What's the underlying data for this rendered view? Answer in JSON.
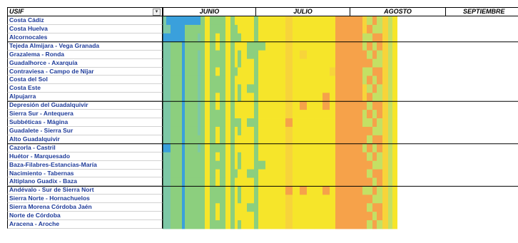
{
  "header": {
    "usif_label": "USIF",
    "filter_glyph": "▾",
    "months": [
      "JUNIO",
      "JULIO",
      "AGOSTO",
      "SEPTIEMBRE"
    ]
  },
  "rows": [
    "Costa Cádiz",
    "Costa Huelva",
    "Alcornocales",
    "Tejeda Almijara - Vega Granada",
    "Grazalema - Ronda",
    "Guadalhorce - Axarquía",
    "Contraviesa - Campo de Níjar",
    "Costa del Sol",
    "Costa Este",
    "Alpujarra",
    "Depresión del Guadalquivir",
    "Sierra Sur - Antequera",
    "Subbéticas - Mágina",
    "Guadalete - Sierra Sur",
    "Alto Guadalquivir",
    "Cazorla - Castril",
    "Huétor - Marquesado",
    "Baza-Filabres-Estancias-María",
    "Nacimiento - Tabernas",
    "Altiplano Guadix - Baza",
    "Andévalo - Sur de Sierra Nort",
    "Sierra Norte - Hornachuelos",
    "Sierra Morena Córdoba Jaén",
    "Norte de Córdoba",
    "Aracena - Aroche"
  ],
  "chart_data": {
    "type": "heatmap",
    "group_separators_after_row": [
      2,
      9,
      14,
      19
    ],
    "palette": {
      "0": "#3aa0dc",
      "1": "#7dc8a6",
      "2": "#8ccf7e",
      "3": "#c4e064",
      "4": "#f6e52a",
      "5": "#f7d43a",
      "6": "#f6a24a",
      "7": "#ffffff"
    },
    "columns": [
      {
        "w": 5,
        "cells": [
          "1",
          "1",
          "0",
          "1",
          "1",
          "1",
          "1",
          "1",
          "1",
          "1",
          "1",
          "1",
          "1",
          "1",
          "1",
          "0",
          "1",
          "1",
          "1",
          "1",
          "1",
          "1",
          "1",
          "1",
          "1"
        ]
      },
      {
        "w": 6,
        "cells": [
          "0",
          "1",
          "0",
          "1",
          "1",
          "1",
          "1",
          "1",
          "1",
          "1",
          "1",
          "1",
          "1",
          "1",
          "1",
          "0",
          "1",
          "1",
          "1",
          "1",
          "1",
          "1",
          "1",
          "1",
          "1"
        ]
      },
      {
        "w": 10,
        "cells": [
          "0",
          "0",
          "0",
          "2",
          "2",
          "2",
          "2",
          "2",
          "2",
          "2",
          "2",
          "2",
          "2",
          "2",
          "2",
          "2",
          "2",
          "2",
          "2",
          "2",
          "2",
          "2",
          "2",
          "2",
          "2"
        ]
      },
      {
        "w": 6,
        "cells": [
          "0",
          "0",
          "0",
          "2",
          "2",
          "2",
          "2",
          "2",
          "2",
          "2",
          "2",
          "2",
          "2",
          "2",
          "2",
          "2",
          "2",
          "2",
          "2",
          "2",
          "2",
          "2",
          "2",
          "2",
          "2"
        ]
      },
      {
        "w": 4,
        "cells": [
          "0",
          "0",
          "0",
          "0",
          "0",
          "0",
          "0",
          "0",
          "0",
          "0",
          "0",
          "0",
          "0",
          "0",
          "0",
          "0",
          "0",
          "0",
          "0",
          "0",
          "0",
          "0",
          "0",
          "0",
          "0"
        ]
      },
      {
        "w": 18,
        "cells": [
          "0",
          "2",
          "2",
          "2",
          "2",
          "2",
          "2",
          "2",
          "2",
          "2",
          "2",
          "2",
          "2",
          "2",
          "2",
          "2",
          "2",
          "2",
          "2",
          "2",
          "2",
          "2",
          "2",
          "2",
          "2"
        ]
      },
      {
        "w": 4,
        "cells": [
          "0",
          "2",
          "1",
          "2",
          "1",
          "1",
          "1",
          "1",
          "1",
          "1",
          "1",
          "1",
          "1",
          "1",
          "2",
          "1",
          "2",
          "2",
          "2",
          "2",
          "2",
          "2",
          "2",
          "2",
          "2"
        ]
      },
      {
        "w": 6,
        "cells": [
          "2",
          "2",
          "2",
          "2",
          "2",
          "2",
          "2",
          "2",
          "2",
          "2",
          "2",
          "2",
          "2",
          "2",
          "2",
          "2",
          "2",
          "2",
          "2",
          "2",
          "2",
          "2",
          "2",
          "2",
          "2"
        ]
      },
      {
        "w": 7,
        "cells": [
          "4",
          "4",
          "4",
          "4",
          "4",
          "4",
          "4",
          "4",
          "4",
          "4",
          "4",
          "4",
          "4",
          "4",
          "4",
          "4",
          "4",
          "4",
          "4",
          "4",
          "4",
          "4",
          "4",
          "4",
          "4"
        ]
      },
      {
        "w": 8,
        "cells": [
          "2",
          "2",
          "2",
          "2",
          "2",
          "2",
          "2",
          "2",
          "2",
          "2",
          "2",
          "2",
          "2",
          "2",
          "2",
          "2",
          "2",
          "2",
          "2",
          "2",
          "2",
          "2",
          "2",
          "2",
          "2"
        ]
      },
      {
        "w": 6,
        "cells": [
          "2",
          "2",
          "4",
          "4",
          "2",
          "2",
          "4",
          "2",
          "2",
          "4",
          "4",
          "2",
          "2",
          "4",
          "4",
          "2",
          "4",
          "2",
          "4",
          "4",
          "2",
          "2",
          "4",
          "4",
          "2"
        ]
      },
      {
        "w": 8,
        "cells": [
          "2",
          "2",
          "2",
          "2",
          "2",
          "2",
          "2",
          "2",
          "2",
          "2",
          "2",
          "2",
          "2",
          "2",
          "2",
          "2",
          "2",
          "2",
          "2",
          "2",
          "2",
          "2",
          "2",
          "2",
          "2"
        ]
      },
      {
        "w": 7,
        "cells": [
          "4",
          "4",
          "4",
          "4",
          "4",
          "4",
          "4",
          "4",
          "4",
          "4",
          "4",
          "4",
          "4",
          "4",
          "4",
          "4",
          "4",
          "4",
          "4",
          "4",
          "4",
          "4",
          "4",
          "4",
          "4"
        ]
      },
      {
        "w": 6,
        "cells": [
          "2",
          "2",
          "2",
          "2",
          "2",
          "2",
          "2",
          "2",
          "2",
          "2",
          "2",
          "2",
          "2",
          "2",
          "2",
          "2",
          "2",
          "2",
          "2",
          "2",
          "2",
          "2",
          "2",
          "2",
          "2"
        ]
      },
      {
        "w": 4,
        "cells": [
          "4",
          "2",
          "2",
          "4",
          "4",
          "4",
          "2",
          "4",
          "4",
          "4",
          "4",
          "4",
          "2",
          "4",
          "4",
          "4",
          "4",
          "4",
          "2",
          "4",
          "4",
          "4",
          "4",
          "4",
          "4"
        ]
      },
      {
        "w": 5,
        "cells": [
          "4",
          "4",
          "2",
          "4",
          "2",
          "2",
          "4",
          "4",
          "2",
          "2",
          "4",
          "4",
          "2",
          "2",
          "4",
          "4",
          "2",
          "2",
          "4",
          "4",
          "2",
          "2",
          "4",
          "4",
          "2"
        ]
      },
      {
        "w": 8,
        "cells": [
          "4",
          "4",
          "4",
          "4",
          "4",
          "4",
          "4",
          "4",
          "4",
          "4",
          "4",
          "4",
          "4",
          "4",
          "4",
          "4",
          "4",
          "4",
          "4",
          "4",
          "4",
          "4",
          "4",
          "4",
          "4"
        ]
      },
      {
        "w": 10,
        "cells": [
          "4",
          "4",
          "4",
          "2",
          "2",
          "4",
          "4",
          "4",
          "2",
          "4",
          "4",
          "4",
          "2",
          "4",
          "4",
          "4",
          "4",
          "4",
          "2",
          "4",
          "4",
          "4",
          "2",
          "4",
          "4"
        ]
      },
      {
        "w": 6,
        "cells": [
          "2",
          "2",
          "2",
          "2",
          "2",
          "2",
          "2",
          "2",
          "2",
          "2",
          "2",
          "2",
          "2",
          "2",
          "2",
          "2",
          "2",
          "2",
          "2",
          "2",
          "2",
          "2",
          "2",
          "2",
          "2"
        ]
      },
      {
        "w": 10,
        "cells": [
          "4",
          "4",
          "4",
          "2",
          "4",
          "4",
          "4",
          "4",
          "4",
          "4",
          "4",
          "4",
          "4",
          "4",
          "4",
          "4",
          "4",
          "2",
          "4",
          "4",
          "4",
          "4",
          "4",
          "4",
          "4"
        ]
      },
      {
        "w": 8,
        "cells": [
          "4",
          "4",
          "4",
          "4",
          "4",
          "4",
          "4",
          "4",
          "4",
          "4",
          "4",
          "4",
          "4",
          "4",
          "4",
          "4",
          "4",
          "4",
          "4",
          "4",
          "4",
          "4",
          "4",
          "4",
          "4"
        ]
      },
      {
        "w": 12,
        "cells": [
          "4",
          "4",
          "4",
          "4",
          "4",
          "4",
          "4",
          "4",
          "4",
          "4",
          "4",
          "4",
          "4",
          "4",
          "4",
          "4",
          "4",
          "4",
          "4",
          "4",
          "4",
          "4",
          "4",
          "4",
          "4"
        ]
      },
      {
        "w": 8,
        "cells": [
          "4",
          "4",
          "4",
          "4",
          "4",
          "4",
          "4",
          "4",
          "4",
          "4",
          "4",
          "4",
          "4",
          "4",
          "4",
          "4",
          "4",
          "4",
          "4",
          "4",
          "4",
          "4",
          "4",
          "4",
          "4"
        ]
      },
      {
        "w": 10,
        "cells": [
          "5",
          "5",
          "5",
          "5",
          "5",
          "5",
          "5",
          "5",
          "5",
          "5",
          "5",
          "5",
          "6",
          "5",
          "5",
          "5",
          "5",
          "5",
          "5",
          "5",
          "6",
          "5",
          "5",
          "5",
          "5"
        ]
      },
      {
        "w": 10,
        "cells": [
          "4",
          "4",
          "4",
          "4",
          "4",
          "4",
          "4",
          "4",
          "4",
          "4",
          "4",
          "4",
          "4",
          "4",
          "4",
          "4",
          "4",
          "4",
          "4",
          "4",
          "4",
          "4",
          "4",
          "4",
          "4"
        ]
      },
      {
        "w": 10,
        "cells": [
          "4",
          "4",
          "4",
          "4",
          "5",
          "4",
          "4",
          "4",
          "4",
          "4",
          "6",
          "4",
          "4",
          "4",
          "4",
          "4",
          "4",
          "4",
          "4",
          "4",
          "6",
          "4",
          "4",
          "4",
          "4"
        ]
      },
      {
        "w": 10,
        "cells": [
          "4",
          "4",
          "4",
          "4",
          "4",
          "4",
          "4",
          "4",
          "4",
          "4",
          "4",
          "4",
          "4",
          "4",
          "4",
          "4",
          "4",
          "4",
          "4",
          "4",
          "4",
          "4",
          "4",
          "4",
          "4"
        ]
      },
      {
        "w": 12,
        "cells": [
          "4",
          "4",
          "4",
          "4",
          "4",
          "4",
          "4",
          "4",
          "4",
          "4",
          "4",
          "4",
          "4",
          "4",
          "4",
          "4",
          "4",
          "4",
          "4",
          "4",
          "4",
          "4",
          "4",
          "4",
          "4"
        ]
      },
      {
        "w": 10,
        "cells": [
          "4",
          "4",
          "4",
          "4",
          "4",
          "4",
          "4",
          "4",
          "4",
          "6",
          "6",
          "4",
          "4",
          "4",
          "4",
          "4",
          "4",
          "4",
          "4",
          "4",
          "6",
          "4",
          "4",
          "4",
          "4"
        ]
      },
      {
        "w": 8,
        "cells": [
          "4",
          "4",
          "4",
          "4",
          "4",
          "4",
          "5",
          "4",
          "4",
          "4",
          "4",
          "4",
          "4",
          "4",
          "4",
          "4",
          "4",
          "4",
          "4",
          "4",
          "4",
          "4",
          "4",
          "4",
          "4"
        ]
      },
      {
        "w": 38,
        "cells": [
          "6",
          "6",
          "6",
          "6",
          "6",
          "6",
          "6",
          "6",
          "6",
          "6",
          "6",
          "6",
          "6",
          "6",
          "6",
          "6",
          "6",
          "6",
          "6",
          "6",
          "6",
          "6",
          "6",
          "6",
          "6"
        ]
      },
      {
        "w": 6,
        "cells": [
          "5",
          "5",
          "3",
          "3",
          "6",
          "6",
          "3",
          "3",
          "5",
          "5",
          "6",
          "3",
          "3",
          "6",
          "6",
          "3",
          "6",
          "6",
          "6",
          "6",
          "3",
          "6",
          "6",
          "6",
          "6"
        ]
      },
      {
        "w": 8,
        "cells": [
          "3",
          "6",
          "3",
          "6",
          "3",
          "6",
          "3",
          "6",
          "3",
          "6",
          "3",
          "6",
          "3",
          "6",
          "3",
          "6",
          "3",
          "6",
          "3",
          "6",
          "3",
          "6",
          "3",
          "6",
          "3"
        ]
      },
      {
        "w": 6,
        "cells": [
          "6",
          "3",
          "6",
          "3",
          "6",
          "3",
          "6",
          "3",
          "6",
          "3",
          "6",
          "3",
          "6",
          "3",
          "6",
          "3",
          "6",
          "3",
          "6",
          "3",
          "6",
          "3",
          "6",
          "3",
          "6"
        ]
      },
      {
        "w": 8,
        "cells": [
          "3",
          "3",
          "6",
          "6",
          "3",
          "3",
          "6",
          "6",
          "3",
          "3",
          "6",
          "6",
          "3",
          "3",
          "6",
          "6",
          "3",
          "3",
          "6",
          "6",
          "3",
          "3",
          "6",
          "6",
          "3"
        ]
      },
      {
        "w": 8,
        "cells": [
          "5",
          "5",
          "5",
          "5",
          "5",
          "5",
          "5",
          "5",
          "5",
          "5",
          "5",
          "5",
          "5",
          "5",
          "5",
          "5",
          "5",
          "5",
          "5",
          "5",
          "5",
          "5",
          "5",
          "5",
          "5"
        ]
      },
      {
        "w": 6,
        "cells": [
          "3",
          "3",
          "3",
          "3",
          "3",
          "3",
          "3",
          "3",
          "3",
          "3",
          "3",
          "3",
          "3",
          "3",
          "3",
          "3",
          "3",
          "3",
          "3",
          "3",
          "3",
          "3",
          "3",
          "3",
          "3"
        ]
      },
      {
        "w": 7,
        "cells": [
          "4",
          "4",
          "4",
          "4",
          "4",
          "4",
          "4",
          "4",
          "4",
          "4",
          "4",
          "4",
          "4",
          "4",
          "4",
          "4",
          "4",
          "4",
          "4",
          "4",
          "4",
          "4",
          "4",
          "4",
          "4"
        ]
      },
      {
        "w": 35,
        "cells": [
          "7",
          "7",
          "7",
          "7",
          "7",
          "7",
          "7",
          "7",
          "7",
          "7",
          "7",
          "7",
          "7",
          "7",
          "7",
          "7",
          "7",
          "7",
          "7",
          "7",
          "7",
          "7",
          "7",
          "7",
          "7"
        ]
      }
    ]
  }
}
